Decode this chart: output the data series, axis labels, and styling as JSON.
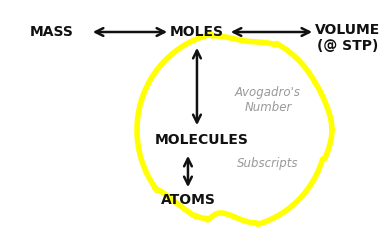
{
  "background_color": "#ffffff",
  "blob_color": "#ffff00",
  "blob_linewidth": 4.0,
  "blob_fill": "#ffffff",
  "arrow_color": "#111111",
  "text_color": "#111111",
  "gray_color": "#999999",
  "moles_label": "MOLES",
  "mass_label": "MASS",
  "volume_label": "VOLUME\n(@ STP)",
  "molecules_label": "MOLECULES",
  "atoms_label": "ATOMS",
  "avogadro_label": "Avogadro's\nNumber",
  "subscripts_label": "Subscripts",
  "fontsize_main": 10,
  "fontsize_gray": 8.5
}
